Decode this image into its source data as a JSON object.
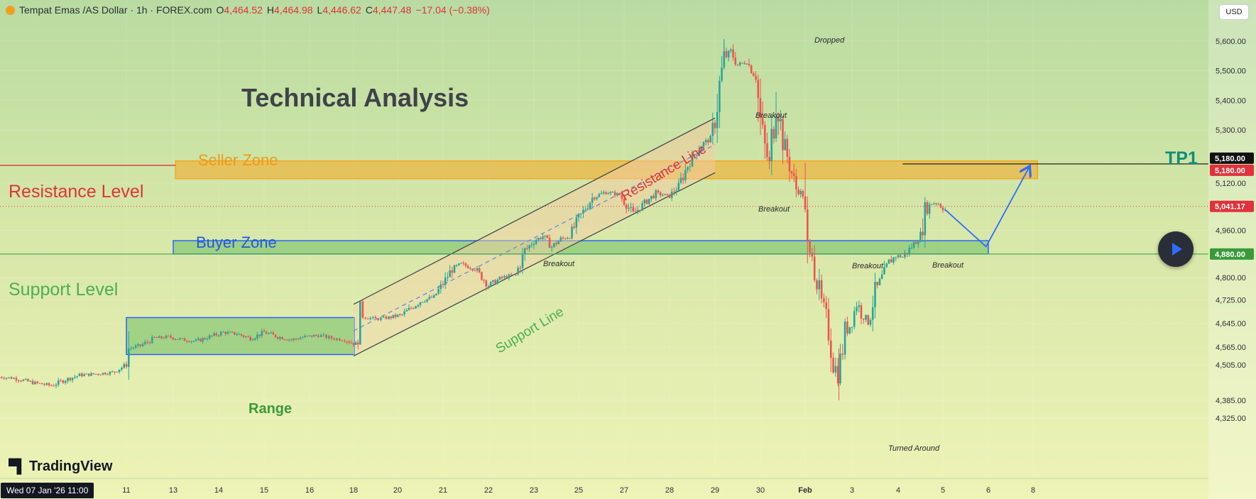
{
  "header": {
    "symbol": "Tempat Emas /AS Dollar · 1h · FOREX.com",
    "o_label": "O",
    "o_value": "4,464.52",
    "h_label": "H",
    "h_value": "4,464.98",
    "l_label": "L",
    "l_value": "4,446.62",
    "c_label": "C",
    "c_value": "4,447.48",
    "change": "−17.04 (−0.38%)"
  },
  "currency_button": "USD",
  "brand": "TradingView",
  "cursor_date": "Wed 07 Jan '26   11:00",
  "colors": {
    "up": "#26a69a",
    "down": "#ef5350",
    "resistance": "#e0323c",
    "support": "#4caf50",
    "seller_zone": "#f5a623",
    "buyer_zone": "#2962ff",
    "tp": "#0e8f7a"
  },
  "chart_data": {
    "type": "candlestick",
    "title": "Technical Analysis",
    "instrument": "Tempat Emas /AS Dollar",
    "timeframe": "1h",
    "ylim": [
      4300,
      5680
    ],
    "y_ticks": [
      "5,600.00",
      "5,500.00",
      "5,400.00",
      "5,300.00",
      "5,120.00",
      "4,960.00",
      "4,800.00",
      "4,725.00",
      "4,645.00",
      "4,565.00",
      "4,505.00",
      "4,385.00",
      "4,325.00"
    ],
    "y_tick_values": [
      5600,
      5500,
      5400,
      5300,
      5120,
      4960,
      4800,
      4725,
      4645,
      4565,
      4505,
      4385,
      4325
    ],
    "x_ticks": [
      "11",
      "13",
      "14",
      "15",
      "16",
      "18",
      "20",
      "21",
      "22",
      "23",
      "25",
      "27",
      "28",
      "29",
      "30",
      "Feb",
      "3",
      "4",
      "5",
      "6",
      "8"
    ],
    "x_tick_index": [
      0,
      1,
      2,
      3,
      4,
      5,
      6,
      7,
      8,
      9,
      10,
      11,
      12,
      13,
      14,
      15,
      16,
      17,
      18,
      19,
      20
    ],
    "price_path": [
      [
        -2.77,
        4465
      ],
      [
        -2.4,
        4460
      ],
      [
        -2.0,
        4445
      ],
      [
        -1.6,
        4435
      ],
      [
        -1.3,
        4455
      ],
      [
        -1.0,
        4470
      ],
      [
        -0.6,
        4475
      ],
      [
        -0.3,
        4480
      ],
      [
        0.0,
        4505
      ],
      [
        0.05,
        4560
      ],
      [
        0.3,
        4570
      ],
      [
        0.6,
        4595
      ],
      [
        0.9,
        4600
      ],
      [
        1.2,
        4590
      ],
      [
        1.5,
        4585
      ],
      [
        1.8,
        4600
      ],
      [
        2.1,
        4615
      ],
      [
        2.4,
        4610
      ],
      [
        2.7,
        4595
      ],
      [
        3.0,
        4615
      ],
      [
        3.3,
        4600
      ],
      [
        3.6,
        4590
      ],
      [
        3.9,
        4600
      ],
      [
        4.2,
        4605
      ],
      [
        4.5,
        4595
      ],
      [
        4.8,
        4590
      ],
      [
        5.05,
        4575
      ],
      [
        5.15,
        4670
      ],
      [
        5.5,
        4660
      ],
      [
        5.8,
        4665
      ],
      [
        6.1,
        4675
      ],
      [
        6.5,
        4720
      ],
      [
        6.8,
        4735
      ],
      [
        7.0,
        4780
      ],
      [
        7.2,
        4830
      ],
      [
        7.4,
        4845
      ],
      [
        7.7,
        4830
      ],
      [
        8.0,
        4775
      ],
      [
        8.3,
        4800
      ],
      [
        8.6,
        4810
      ],
      [
        8.8,
        4890
      ],
      [
        9.0,
        4925
      ],
      [
        9.2,
        4940
      ],
      [
        9.4,
        4905
      ],
      [
        9.6,
        4930
      ],
      [
        9.8,
        4940
      ],
      [
        10.0,
        5000
      ],
      [
        10.3,
        5070
      ],
      [
        10.6,
        5090
      ],
      [
        10.9,
        5080
      ],
      [
        11.2,
        5015
      ],
      [
        11.5,
        5060
      ],
      [
        11.7,
        5085
      ],
      [
        12.0,
        5075
      ],
      [
        12.2,
        5110
      ],
      [
        12.4,
        5180
      ],
      [
        12.7,
        5250
      ],
      [
        12.9,
        5270
      ],
      [
        13.0,
        5330
      ],
      [
        13.1,
        5450
      ],
      [
        13.2,
        5540
      ],
      [
        13.35,
        5565
      ],
      [
        13.5,
        5520
      ],
      [
        13.7,
        5530
      ],
      [
        13.9,
        5480
      ],
      [
        14.0,
        5330
      ],
      [
        14.1,
        5240
      ],
      [
        14.2,
        5180
      ],
      [
        14.35,
        5420
      ],
      [
        14.5,
        5270
      ],
      [
        14.65,
        5180
      ],
      [
        14.8,
        5100
      ],
      [
        14.95,
        5080
      ],
      [
        15.05,
        4860
      ],
      [
        15.15,
        4890
      ],
      [
        15.3,
        4740
      ],
      [
        15.45,
        4670
      ],
      [
        15.6,
        4520
      ],
      [
        15.7,
        4470
      ],
      [
        15.85,
        4610
      ],
      [
        16.0,
        4650
      ],
      [
        16.1,
        4720
      ],
      [
        16.2,
        4680
      ],
      [
        16.35,
        4650
      ],
      [
        16.5,
        4750
      ],
      [
        16.65,
        4800
      ],
      [
        16.8,
        4850
      ],
      [
        16.95,
        4875
      ],
      [
        17.1,
        4870
      ],
      [
        17.3,
        4905
      ],
      [
        17.5,
        4945
      ],
      [
        17.6,
        5020
      ],
      [
        17.75,
        5055
      ],
      [
        17.9,
        5050
      ],
      [
        18.05,
        5030
      ]
    ],
    "projection": [
      [
        18.05,
        5030
      ],
      [
        18.95,
        4905
      ],
      [
        19.9,
        5170
      ]
    ],
    "zones": [
      {
        "name": "Seller Zone",
        "from": 5135,
        "to": 5195
      },
      {
        "name": "Buyer Zone",
        "from": 4880,
        "to": 4925
      },
      {
        "name": "Range",
        "from": 4540,
        "to": 4665
      }
    ],
    "levels": [
      {
        "name": "Resistance Level",
        "value": 5180
      },
      {
        "name": "Support Level",
        "value": 4880
      },
      {
        "name": "TP1",
        "value": 5180
      }
    ],
    "current_price": 5041.17,
    "price_labels": [
      "5,180.00",
      "5,180.00",
      "5,041.17",
      "4,880.00"
    ],
    "price_label_values": [
      5180,
      5180,
      5041.17,
      4880
    ],
    "channel": {
      "upper": [
        [
          5.0,
          4710
        ],
        [
          13.0,
          5340
        ]
      ],
      "lower": [
        [
          5.0,
          4535
        ],
        [
          13.0,
          5155
        ]
      ],
      "mid": [
        [
          5.0,
          4620
        ],
        [
          13.0,
          5250
        ]
      ]
    },
    "annotations": {
      "resistance_level": "Resistance Level",
      "support_level": "Support Level",
      "seller_zone": "Seller Zone",
      "buyer_zone": "Buyer Zone",
      "range": "Range",
      "tp1": "TP1",
      "resistance_line": "Resistance Line",
      "support_line": "Support Line",
      "dropped": "Dropped",
      "turned_around": "Turned Around",
      "breakout": "Breakout"
    }
  }
}
